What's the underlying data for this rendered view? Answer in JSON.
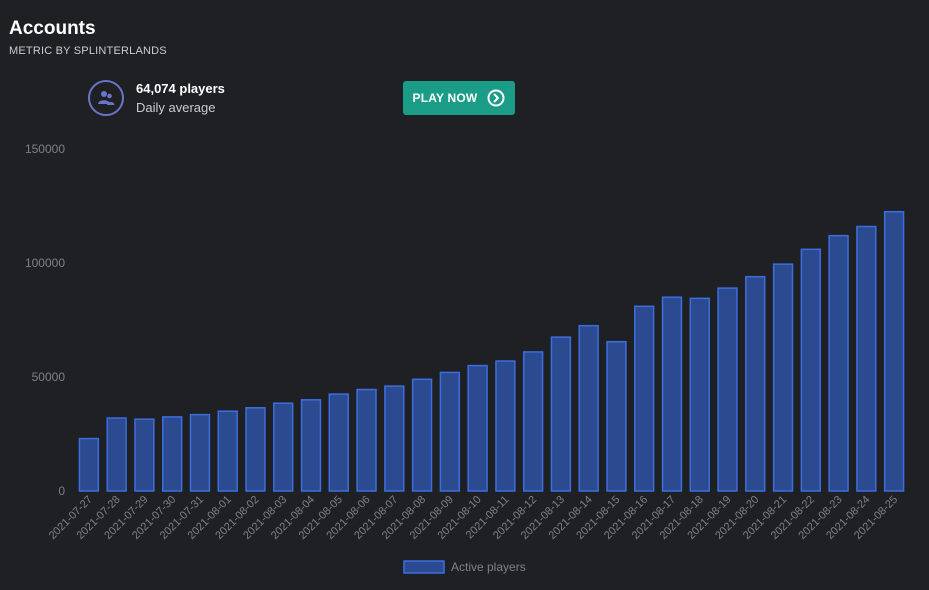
{
  "header": {
    "title": "Accounts",
    "subtitle": "METRIC BY SPLINTERLANDS"
  },
  "stat": {
    "value": "64,074 players",
    "label": "Daily average",
    "icon": "users-icon"
  },
  "play_button": {
    "label": "PLAY NOW",
    "icon": "chevron-right-circle-icon"
  },
  "colors": {
    "background": "#1e2024",
    "bar_fill": "#2b4a8f",
    "bar_stroke": "#3d6ee0",
    "button": "#1a9c86",
    "icon_ring": "#6b74c9",
    "axis_text": "#7d8188"
  },
  "chart_data": {
    "type": "bar",
    "title": "",
    "xlabel": "",
    "ylabel": "",
    "ylim": [
      0,
      150000
    ],
    "yticks": [
      0,
      50000,
      100000,
      150000
    ],
    "grid": false,
    "legend_position": "bottom",
    "categories": [
      "2021-07-27",
      "2021-07-28",
      "2021-07-29",
      "2021-07-30",
      "2021-07-31",
      "2021-08-01",
      "2021-08-02",
      "2021-08-03",
      "2021-08-04",
      "2021-08-05",
      "2021-08-06",
      "2021-08-07",
      "2021-08-08",
      "2021-08-09",
      "2021-08-10",
      "2021-08-11",
      "2021-08-12",
      "2021-08-13",
      "2021-08-14",
      "2021-08-15",
      "2021-08-16",
      "2021-08-17",
      "2021-08-18",
      "2021-08-19",
      "2021-08-20",
      "2021-08-21",
      "2021-08-22",
      "2021-08-23",
      "2021-08-24",
      "2021-08-25"
    ],
    "series": [
      {
        "name": "Active players",
        "values": [
          23000,
          32000,
          31500,
          32500,
          33500,
          35000,
          36500,
          38500,
          40000,
          42500,
          44500,
          46000,
          49000,
          52000,
          55000,
          57000,
          61000,
          67500,
          72500,
          65500,
          81000,
          85000,
          84500,
          89000,
          94000,
          99500,
          106000,
          112000,
          116000,
          122500
        ]
      }
    ]
  }
}
